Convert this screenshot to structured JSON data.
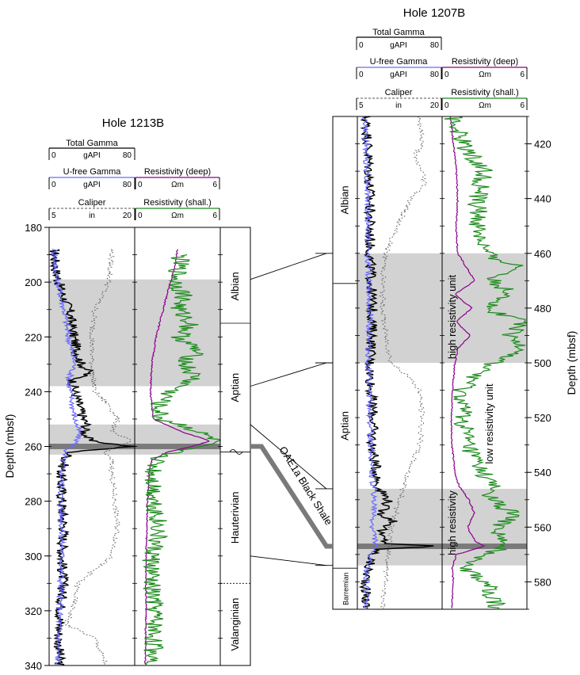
{
  "colors": {
    "total_gamma": "#000000",
    "ufree_gamma": "#6a6aff",
    "caliper": "#555555",
    "resistivity_deep": "#8b008b",
    "resistivity_shallow": "#1a8a1a",
    "shading": "#d2d2d2",
    "oae_band": "#7a7a7a"
  },
  "chart_data": [
    {
      "type": "line",
      "title": "Hole 1213B",
      "ylabel": "Depth (mbsf)",
      "ylim": [
        180,
        340
      ],
      "yticks": [
        "180",
        "200",
        "220",
        "240",
        "260",
        "280",
        "300",
        "320",
        "340"
      ],
      "grid": false,
      "headers": {
        "gamma": {
          "name": "Total Gamma",
          "min": "0",
          "unit": "gAPI",
          "max": "80"
        },
        "ufree": {
          "name": "U-free Gamma",
          "min": "0",
          "unit": "gAPI",
          "max": "80"
        },
        "caliper": {
          "name": "Caliper",
          "min": "5",
          "unit": "in",
          "max": "20"
        },
        "res_deep": {
          "name": "Resistivity (deep)",
          "min": "0",
          "unit": "Ωm",
          "max": "6"
        },
        "res_shallow": {
          "name": "Resistivity (shall.)",
          "min": "0",
          "unit": "Ωm",
          "max": "6"
        }
      },
      "shaded_intervals": [
        [
          199,
          238
        ],
        [
          252,
          263
        ]
      ],
      "oae_band": [
        259,
        261
      ],
      "stages": [
        {
          "name": "Albian",
          "top": 188,
          "bottom": 215
        },
        {
          "name": "Aptian",
          "top": 215,
          "bottom": 262
        },
        {
          "name": "Hauterivian",
          "top": 262,
          "bottom": 310
        },
        {
          "name": "Valanginian",
          "top": 310,
          "bottom": 340
        }
      ],
      "series": [
        {
          "name": "Total Gamma",
          "track": "gamma",
          "depth": [
            188,
            195,
            200,
            205,
            210,
            215,
            220,
            225,
            230,
            233,
            236,
            240,
            245,
            250,
            252,
            255,
            258,
            260,
            262,
            265,
            270,
            280,
            290,
            300,
            310,
            320,
            330,
            340
          ],
          "values": [
            5,
            6,
            9,
            13,
            19,
            21,
            23,
            26,
            30,
            38,
            22,
            24,
            28,
            32,
            35,
            33,
            38,
            78,
            20,
            15,
            11,
            12,
            14,
            12,
            13,
            11,
            9,
            10
          ]
        },
        {
          "name": "U-free Gamma",
          "track": "gamma",
          "depth": [
            188,
            195,
            200,
            210,
            220,
            230,
            236,
            240,
            250,
            255,
            258,
            260,
            262,
            270,
            280,
            290,
            300,
            310,
            320,
            330,
            340
          ],
          "values": [
            5,
            6,
            8,
            14,
            18,
            24,
            18,
            20,
            24,
            28,
            26,
            22,
            14,
            12,
            11,
            12,
            12,
            11,
            10,
            9,
            8
          ]
        },
        {
          "name": "Caliper",
          "track": "caliper",
          "depth": [
            188,
            200,
            210,
            220,
            230,
            240,
            245,
            250,
            255,
            258,
            262,
            265,
            270,
            280,
            290,
            300,
            305,
            310,
            320,
            325,
            330,
            340
          ],
          "values": [
            16,
            15.5,
            13,
            12.5,
            12.5,
            13,
            15.5,
            17,
            16,
            19.5,
            14.5,
            16,
            16,
            16.5,
            17,
            16,
            13,
            10,
            9,
            8,
            13,
            15
          ]
        },
        {
          "name": "Resistivity (deep)",
          "track": "res",
          "depth": [
            188,
            195,
            200,
            210,
            220,
            230,
            240,
            250,
            255,
            258,
            260,
            262,
            265,
            270,
            280,
            290,
            300,
            310,
            320,
            330,
            340
          ],
          "values": [
            3,
            2.8,
            2.5,
            2.0,
            1.5,
            1.2,
            1.1,
            1.3,
            3.5,
            5.3,
            4.0,
            2.3,
            1.2,
            1.0,
            0.9,
            0.85,
            0.8,
            0.8,
            0.8,
            0.75,
            0.75
          ]
        },
        {
          "name": "Resistivity (shall.)",
          "track": "res",
          "depth": [
            190,
            200,
            205,
            210,
            215,
            220,
            225,
            230,
            235,
            240,
            245,
            250,
            253,
            255,
            258,
            260,
            262,
            265,
            270,
            280,
            290,
            300,
            310,
            320,
            330,
            340
          ],
          "values": [
            3.2,
            2.9,
            3.5,
            3.0,
            4.0,
            3.2,
            4.3,
            3.5,
            4.2,
            2.5,
            1.6,
            1.8,
            3.8,
            4.5,
            5.9,
            4.0,
            2.7,
            1.5,
            1.3,
            1.4,
            1.7,
            1.2,
            1.1,
            1.4,
            1.3,
            1.4
          ]
        }
      ]
    },
    {
      "type": "line",
      "title": "Hole 1207B",
      "ylabel": "Depth (mbsf)",
      "ylim": [
        410,
        590
      ],
      "yticks": [
        "420",
        "440",
        "460",
        "480",
        "500",
        "520",
        "540",
        "560",
        "580"
      ],
      "grid": false,
      "headers": {
        "gamma": {
          "name": "Total Gamma",
          "min": "0",
          "unit": "gAPI",
          "max": "80"
        },
        "ufree": {
          "name": "U-free Gamma",
          "min": "0",
          "unit": "gAPI",
          "max": "80"
        },
        "caliper": {
          "name": "Caliper",
          "min": "5",
          "unit": "in",
          "max": "20"
        },
        "res_deep": {
          "name": "Resistivity (deep)",
          "min": "0",
          "unit": "Ωm",
          "max": "6"
        },
        "res_shallow": {
          "name": "Resistivity (shall.)",
          "min": "0",
          "unit": "Ωm",
          "max": "6"
        }
      },
      "shaded_intervals": [
        [
          460,
          500
        ],
        [
          546,
          574
        ]
      ],
      "oae_band": [
        566,
        568
      ],
      "stages": [
        {
          "name": "Albian",
          "top": 410,
          "bottom": 471
        },
        {
          "name": "Aptian",
          "top": 471,
          "bottom": 575
        },
        {
          "name": "Barremian",
          "top": 575,
          "bottom": 590
        }
      ],
      "annotations": [
        "high resistivity unit",
        "low resistivity unit",
        "high resistivity"
      ],
      "series": [
        {
          "name": "Total Gamma",
          "track": "gamma",
          "depth": [
            410,
            420,
            440,
            460,
            470,
            480,
            490,
            500,
            510,
            520,
            530,
            540,
            546,
            550,
            555,
            558,
            562,
            566,
            567,
            568,
            570,
            575,
            580,
            590
          ],
          "values": [
            8,
            10,
            12,
            12,
            13,
            14,
            14,
            12,
            13,
            15,
            14,
            18,
            20,
            30,
            22,
            35,
            20,
            28,
            75,
            20,
            14,
            10,
            8,
            8
          ]
        },
        {
          "name": "U-free Gamma",
          "track": "gamma",
          "depth": [
            410,
            420,
            440,
            460,
            470,
            480,
            490,
            500,
            520,
            540,
            550,
            560,
            566,
            568,
            575,
            590
          ],
          "values": [
            7,
            8,
            10,
            10,
            11,
            12,
            11,
            10,
            12,
            14,
            16,
            14,
            18,
            14,
            9,
            8
          ]
        },
        {
          "name": "Caliper",
          "track": "caliper",
          "depth": [
            410,
            420,
            425,
            430,
            435,
            440,
            450,
            460,
            470,
            480,
            490,
            500,
            505,
            510,
            520,
            530,
            540,
            550,
            560,
            570,
            580,
            590
          ],
          "values": [
            16,
            16.5,
            15,
            16.5,
            17,
            14.5,
            12,
            10,
            9.5,
            9.5,
            10,
            11,
            14,
            16,
            16.5,
            16,
            14,
            12.5,
            11,
            10.5,
            10,
            9.5
          ]
        },
        {
          "name": "Resistivity (deep)",
          "track": "res",
          "depth": [
            410,
            420,
            430,
            440,
            450,
            460,
            470,
            475,
            480,
            485,
            490,
            495,
            500,
            510,
            520,
            530,
            540,
            545,
            550,
            555,
            560,
            565,
            567,
            570,
            575,
            580,
            590
          ],
          "values": [
            0.6,
            0.8,
            1.0,
            1.1,
            1.0,
            1.1,
            2.3,
            0.9,
            2.1,
            1.0,
            2.0,
            1.1,
            0.9,
            0.75,
            0.65,
            0.7,
            0.9,
            1.2,
            1.9,
            2.3,
            1.8,
            2.3,
            3.0,
            1.0,
            0.7,
            0.8,
            0.7
          ]
        },
        {
          "name": "Resistivity (shall.)",
          "track": "res",
          "depth": [
            410,
            420,
            430,
            440,
            450,
            460,
            465,
            470,
            475,
            480,
            485,
            490,
            495,
            500,
            510,
            520,
            530,
            540,
            545,
            550,
            555,
            560,
            565,
            568,
            570,
            575,
            580,
            590
          ],
          "values": [
            0.7,
            1.5,
            3.0,
            2.5,
            2.5,
            3.0,
            5.5,
            3.5,
            5.0,
            3.0,
            6.0,
            4.5,
            6.0,
            3.5,
            1.3,
            1.5,
            1.8,
            2.8,
            3.5,
            3.5,
            5.0,
            4.0,
            4.0,
            4.0,
            3.3,
            1.6,
            3.0,
            4.0
          ]
        }
      ]
    }
  ],
  "correlation_label": "OAE1a Black Shale"
}
